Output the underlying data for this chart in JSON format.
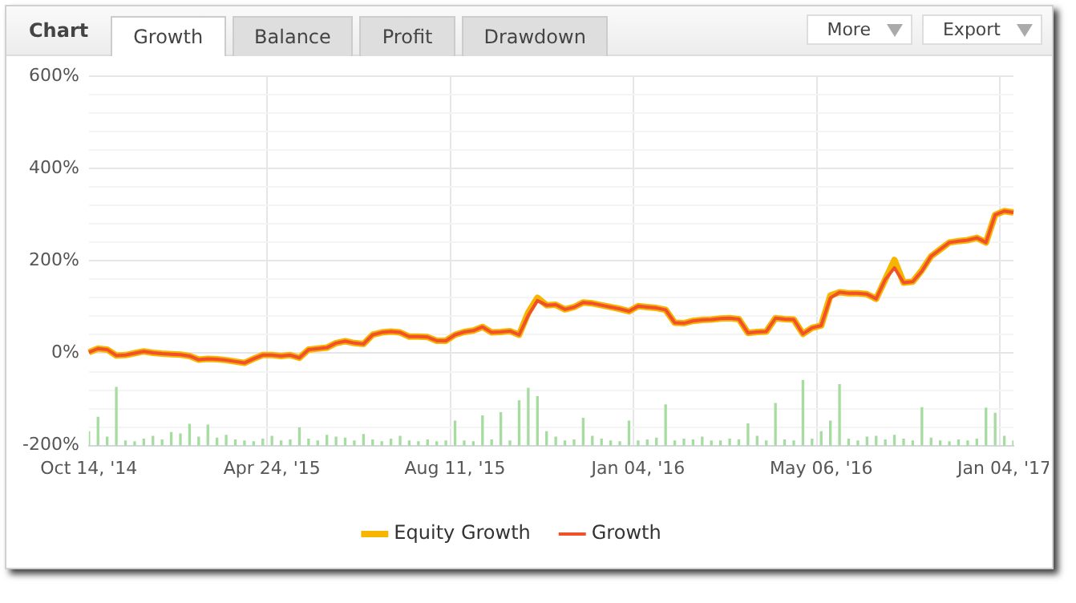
{
  "chart_data": {
    "type": "line",
    "title": "Chart",
    "annotations": [
      "Growth",
      "Balance",
      "Profit",
      "Drawdown",
      "More",
      "Export"
    ],
    "categories": [
      "Oct 14, '14",
      null,
      null,
      null,
      null,
      null,
      null,
      null,
      null,
      null,
      null,
      null,
      null,
      null,
      null,
      null,
      null,
      null,
      null,
      null,
      "Apr 24, '15",
      null,
      null,
      null,
      null,
      null,
      null,
      null,
      null,
      null,
      null,
      null,
      null,
      null,
      null,
      null,
      null,
      null,
      null,
      null,
      "Aug 11, '15",
      null,
      null,
      null,
      null,
      null,
      null,
      null,
      null,
      null,
      null,
      null,
      null,
      null,
      null,
      null,
      null,
      null,
      null,
      null,
      "Jan 04, '16",
      null,
      null,
      null,
      null,
      null,
      null,
      null,
      null,
      null,
      null,
      null,
      null,
      null,
      null,
      null,
      null,
      null,
      null,
      null,
      "May 06, '16",
      null,
      null,
      null,
      null,
      null,
      null,
      null,
      null,
      null,
      null,
      null,
      null,
      null,
      null,
      null,
      null,
      null,
      null,
      null,
      "Jan 04, '17",
      null
    ],
    "series": [
      {
        "type": "bar",
        "color": "#a6dca0",
        "base": [
          -200,
          -200,
          -200,
          -200,
          -200,
          -200,
          -200,
          -200,
          -200,
          -200,
          -200,
          -200,
          -200,
          -200,
          -200,
          -200,
          -200,
          -200,
          -200,
          -200,
          -200,
          -200,
          -200,
          -200,
          -200,
          -200,
          -200,
          -200,
          -200,
          -200,
          -200,
          -200,
          -200,
          -200,
          -200,
          -200,
          -200,
          -200,
          -200,
          -200,
          -200,
          -200,
          -200,
          -200,
          -200,
          -200,
          -200,
          -200,
          -200,
          -200,
          -200,
          -200,
          -200,
          -200,
          -200,
          -200,
          -200,
          -200,
          -200,
          -200,
          -200,
          -200,
          -200,
          -200,
          -200,
          -200,
          -200,
          -200,
          -200,
          -200,
          -200,
          -200,
          -200,
          -200,
          -200,
          -200,
          -200,
          -200,
          -200,
          -200,
          -200,
          -200,
          -200,
          -200,
          -200,
          -200,
          -200,
          -200,
          -200,
          -200,
          -200,
          -200,
          -200,
          -200,
          -200,
          -200,
          -200,
          -200,
          -200,
          -200,
          -200,
          -200
        ],
        "values": [
          30,
          61,
          18,
          126,
          10,
          8,
          14,
          20,
          12,
          28,
          25,
          46,
          18,
          44,
          16,
          22,
          12,
          10,
          8,
          14,
          20,
          10,
          12,
          38,
          14,
          10,
          22,
          18,
          16,
          10,
          24,
          12,
          8,
          14,
          20,
          10,
          8,
          12,
          8,
          10,
          53,
          10,
          8,
          64,
          12,
          71,
          10,
          97,
          124,
          106,
          30,
          18,
          10,
          12,
          59,
          20,
          14,
          10,
          8,
          53,
          10,
          12,
          16,
          88,
          10,
          14,
          12,
          18,
          10,
          10,
          14,
          12,
          47,
          20,
          10,
          91,
          12,
          10,
          141,
          14,
          30,
          53,
          132,
          14,
          10,
          18,
          20,
          12,
          22,
          14,
          10,
          82,
          16,
          10,
          8,
          12,
          10,
          14,
          81,
          70,
          20,
          10
        ]
      },
      {
        "name": "Equity Growth",
        "color": "#f7b500",
        "values": [
          2,
          10,
          8,
          -5,
          -4,
          0,
          4,
          1,
          -1,
          -2,
          -3,
          -6,
          -14,
          -12,
          -13,
          -15,
          -18,
          -21,
          -12,
          -4,
          -4,
          -6,
          -4,
          -10,
          8,
          10,
          12,
          22,
          26,
          22,
          20,
          40,
          45,
          47,
          45,
          36,
          36,
          35,
          27,
          27,
          40,
          46,
          49,
          57,
          45,
          46,
          48,
          40,
          88,
          120,
          104,
          105,
          95,
          100,
          110,
          108,
          104,
          100,
          96,
          91,
          102,
          100,
          98,
          94,
          66,
          65,
          70,
          72,
          73,
          75,
          76,
          74,
          44,
          46,
          47,
          76,
          74,
          73,
          42,
          55,
          60,
          125,
          132,
          130,
          130,
          128,
          118,
          160,
          202,
          153,
          155,
          180,
          210,
          225,
          240,
          243,
          245,
          250,
          240,
          300,
          308,
          305
        ]
      },
      {
        "name": "Growth",
        "color": "#f0502a",
        "values": [
          2,
          10,
          8,
          -5,
          -4,
          0,
          4,
          1,
          -1,
          -2,
          -3,
          -6,
          -14,
          -12,
          -13,
          -15,
          -18,
          -21,
          -12,
          -4,
          -4,
          -6,
          -4,
          -10,
          8,
          10,
          12,
          22,
          26,
          22,
          20,
          40,
          45,
          47,
          45,
          36,
          36,
          35,
          27,
          27,
          40,
          46,
          49,
          57,
          45,
          46,
          48,
          40,
          82,
          114,
          104,
          105,
          95,
          100,
          110,
          108,
          104,
          100,
          96,
          91,
          102,
          100,
          98,
          94,
          66,
          65,
          70,
          72,
          73,
          75,
          76,
          74,
          44,
          46,
          47,
          76,
          74,
          73,
          42,
          55,
          60,
          120,
          132,
          130,
          130,
          128,
          118,
          160,
          185,
          153,
          155,
          178,
          210,
          225,
          240,
          243,
          245,
          250,
          240,
          300,
          308,
          305
        ]
      }
    ],
    "ylim": [
      -200,
      600
    ],
    "yticks": [
      {
        "value": -200,
        "label": "-200%"
      },
      {
        "value": -160,
        "label": null
      },
      {
        "value": -120,
        "label": null
      },
      {
        "value": -80,
        "label": null
      },
      {
        "value": -40,
        "label": null
      },
      {
        "value": 0,
        "label": "0%"
      },
      {
        "value": 40,
        "label": null
      },
      {
        "value": 80,
        "label": null
      },
      {
        "value": 120,
        "label": null
      },
      {
        "value": 160,
        "label": null
      },
      {
        "value": 200,
        "label": "200%"
      },
      {
        "value": 240,
        "label": null
      },
      {
        "value": 280,
        "label": null
      },
      {
        "value": 320,
        "label": null
      },
      {
        "value": 360,
        "label": null
      },
      {
        "value": 400,
        "label": "400%"
      },
      {
        "value": 440,
        "label": null
      },
      {
        "value": 480,
        "label": null
      },
      {
        "value": 520,
        "label": null
      },
      {
        "value": 560,
        "label": null
      },
      {
        "value": 600,
        "label": "600%"
      }
    ],
    "grid": true,
    "legend": "bottom",
    "marker": "none",
    "line_style": "solid"
  }
}
